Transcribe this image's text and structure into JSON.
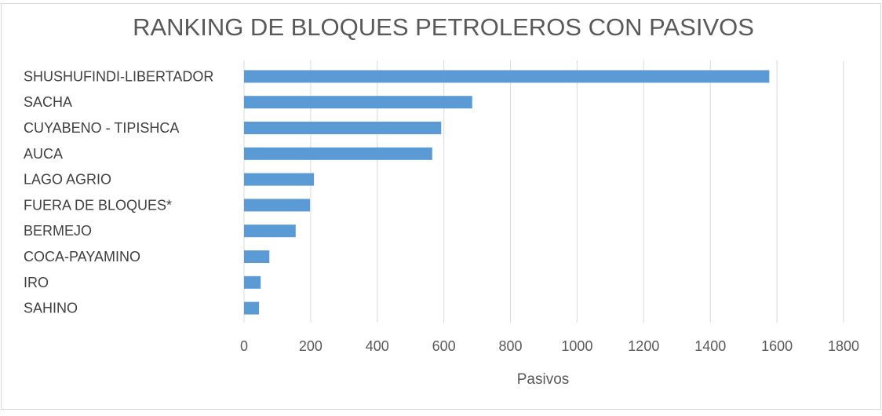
{
  "chart_data": {
    "type": "bar",
    "orientation": "horizontal",
    "title": "RANKING DE BLOQUES PETROLEROS CON PASIVOS",
    "xlabel": "Pasivos",
    "ylabel": "",
    "categories": [
      "SHUSHUFINDI-LIBERTADOR",
      "SACHA",
      "CUYABENO - TIPISHCA",
      "AUCA",
      "LAGO AGRIO",
      "FUERA DE BLOQUES*",
      "BERMEJO",
      "COCA-PAYAMINO",
      "IRO",
      "SAHINO"
    ],
    "values": [
      1577,
      685,
      592,
      565,
      210,
      198,
      155,
      76,
      50,
      45
    ],
    "xlim": [
      0,
      1800
    ],
    "xticks": [
      "0",
      "200",
      "400",
      "600",
      "800",
      "1000",
      "1200",
      "1400",
      "1600",
      "1800"
    ],
    "grid": true,
    "legend": "none",
    "bar_color": "#5b9bd5"
  }
}
